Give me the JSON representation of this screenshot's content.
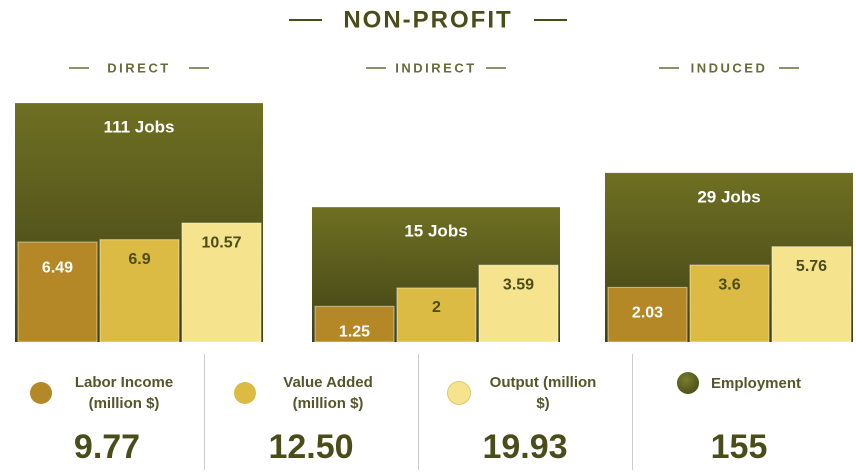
{
  "chart_data": {
    "type": "bar",
    "title": "NON-PROFIT",
    "log_scale": true,
    "categories": [
      "DIRECT",
      "INDIRECT",
      "INDUCED"
    ],
    "series": [
      {
        "name": "Labor Income (million $)",
        "color": "#b48826",
        "values": [
          6.49,
          1.25,
          2.03
        ],
        "total": 9.77
      },
      {
        "name": "Value Added (million $)",
        "color": "#dcbb45",
        "values": [
          6.9,
          2,
          3.6
        ],
        "total": 12.5,
        "total_label": "12.50"
      },
      {
        "name": "Output (million $)",
        "color": "#f6e38e",
        "values": [
          10.57,
          3.59,
          5.76
        ],
        "total": 19.93
      },
      {
        "name": "Employment",
        "color": "#55581c",
        "values": [
          111,
          15,
          29
        ],
        "value_labels": [
          "111 Jobs",
          "15 Jobs",
          "29 Jobs"
        ],
        "total": 155
      }
    ]
  }
}
